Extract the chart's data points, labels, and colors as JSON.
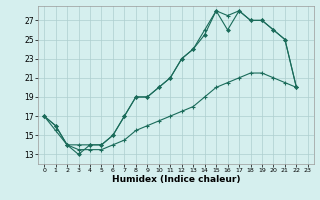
{
  "title": "",
  "xlabel": "Humidex (Indice chaleur)",
  "bg_color": "#d5efee",
  "grid_color": "#aecfcf",
  "line_color": "#1a6b5a",
  "x_ticks": [
    0,
    1,
    2,
    3,
    4,
    5,
    6,
    7,
    8,
    9,
    10,
    11,
    12,
    13,
    14,
    15,
    16,
    17,
    18,
    19,
    20,
    21,
    22,
    23
  ],
  "y_ticks": [
    13,
    15,
    17,
    19,
    21,
    23,
    25,
    27
  ],
  "xlim": [
    -0.5,
    23.5
  ],
  "ylim": [
    12.0,
    28.5
  ],
  "line1_x": [
    0,
    1,
    2,
    3,
    4,
    5,
    6,
    7,
    8,
    9,
    10,
    11,
    12,
    13,
    14,
    15,
    16,
    17,
    18,
    19,
    20,
    21,
    22
  ],
  "line1_y": [
    17,
    16,
    14,
    14,
    14,
    14,
    15,
    17,
    19,
    19,
    20,
    21,
    23,
    24,
    26,
    28,
    27.5,
    28,
    27,
    27,
    26,
    25,
    20
  ],
  "line2_x": [
    0,
    1,
    2,
    3,
    4,
    5,
    6,
    7,
    8,
    9,
    10,
    11,
    12,
    13,
    14,
    15,
    16,
    17,
    18,
    19,
    20,
    21,
    22
  ],
  "line2_y": [
    17,
    16,
    14,
    13,
    14,
    14,
    15,
    17,
    19,
    19,
    20,
    21,
    23,
    24,
    25.5,
    28,
    26,
    28,
    27,
    27,
    26,
    25,
    20
  ],
  "line3_x": [
    0,
    1,
    2,
    3,
    4,
    5,
    6,
    7,
    8,
    9,
    10,
    11,
    12,
    13,
    14,
    15,
    16,
    17,
    18,
    19,
    20,
    21,
    22
  ],
  "line3_y": [
    17,
    15.5,
    14,
    13.5,
    13.5,
    13.5,
    14,
    14.5,
    15.5,
    16,
    16.5,
    17,
    17.5,
    18,
    19,
    20,
    20.5,
    21,
    21.5,
    21.5,
    21,
    20.5,
    20
  ]
}
